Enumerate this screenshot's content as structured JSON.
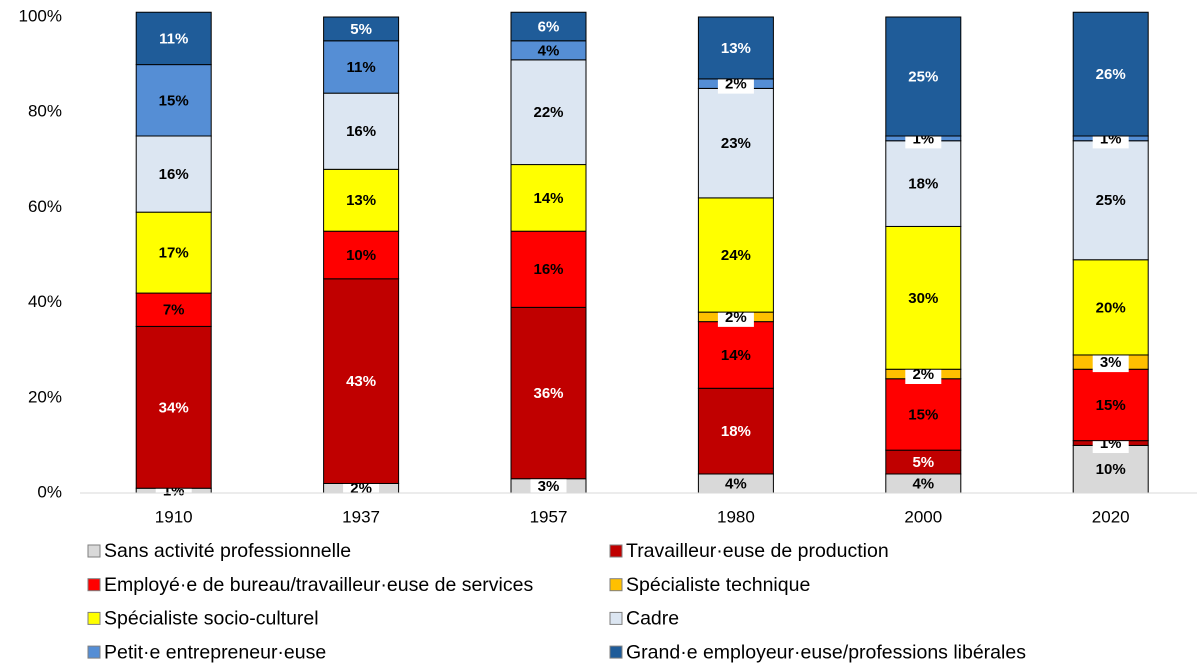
{
  "chart_data": {
    "type": "stacked_bar",
    "categories": [
      "1910",
      "1937",
      "1957",
      "1980",
      "2000",
      "2020"
    ],
    "ylim": [
      0,
      100
    ],
    "yticks": [
      {
        "value": 0,
        "label": "0%"
      },
      {
        "value": 20,
        "label": "20%"
      },
      {
        "value": 40,
        "label": "40%"
      },
      {
        "value": 60,
        "label": "60%"
      },
      {
        "value": 80,
        "label": "80%"
      },
      {
        "value": 100,
        "label": "100%"
      }
    ],
    "series": [
      {
        "name": "Sans activité professionnelle",
        "color": "#d9d9d9",
        "values": [
          1,
          2,
          3,
          4,
          4,
          10
        ],
        "value_labels": [
          "1%",
          "2%",
          "3%",
          "4%",
          "4%",
          "10%"
        ]
      },
      {
        "name": "Travailleur·euse de production",
        "color": "#c00000",
        "values": [
          34,
          43,
          36,
          18,
          5,
          1
        ],
        "value_labels": [
          "34%",
          "43%",
          "36%",
          "18%",
          "5%",
          "1%"
        ]
      },
      {
        "name": "Employé·e de bureau/travailleur·euse de services",
        "color": "#ff0000",
        "values": [
          7,
          10,
          16,
          14,
          15,
          15
        ],
        "value_labels": [
          "7%",
          "10%",
          "16%",
          "14%",
          "15%",
          "15%"
        ]
      },
      {
        "name": "Spécialiste technique",
        "color": "#ffc000",
        "values": [
          0,
          0,
          0,
          2,
          2,
          3
        ],
        "value_labels": [
          null,
          null,
          null,
          "2%",
          "2%",
          "3%"
        ]
      },
      {
        "name": "Spécialiste socio-culturel",
        "color": "#ffff00",
        "values": [
          17,
          13,
          14,
          24,
          30,
          20
        ],
        "value_labels": [
          "17%",
          "13%",
          "14%",
          "24%",
          "30%",
          "20%"
        ]
      },
      {
        "name": "Cadre",
        "color": "#dce6f2",
        "values": [
          16,
          16,
          22,
          23,
          18,
          25
        ],
        "value_labels": [
          "16%",
          "16%",
          "22%",
          "23%",
          "18%",
          "25%"
        ]
      },
      {
        "name": "Petit·e entrepreneur·euse",
        "color": "#558ed5",
        "values": [
          15,
          11,
          4,
          2,
          1,
          1
        ],
        "value_labels": [
          "15%",
          "11%",
          "4%",
          "2%",
          "1%",
          "1%"
        ]
      },
      {
        "name": "Grand·e employeur·euse/professions libérales",
        "color": "#1f5c99",
        "values": [
          11,
          5,
          6,
          13,
          25,
          26
        ],
        "value_labels": [
          "11%",
          "5%",
          "6%",
          "13%",
          "25%",
          "26%"
        ]
      }
    ]
  }
}
